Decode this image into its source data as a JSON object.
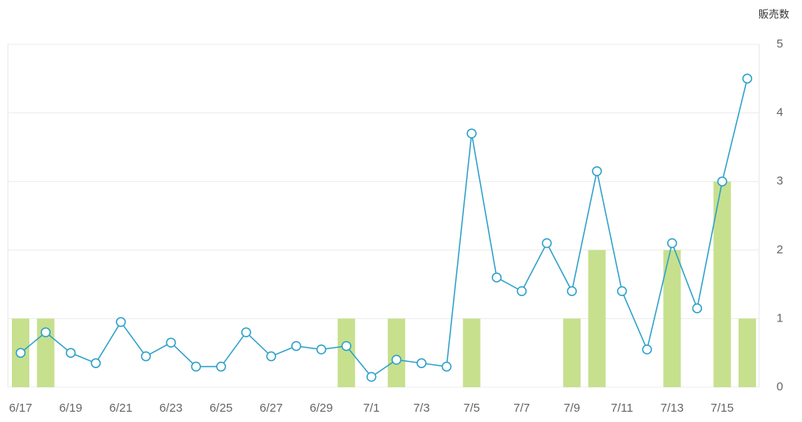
{
  "chart_data": {
    "type": "combo",
    "ylabel": "販売数",
    "categories": [
      "6/17",
      null,
      "6/19",
      null,
      "6/21",
      null,
      "6/23",
      null,
      "6/25",
      null,
      "6/27",
      null,
      "6/29",
      null,
      "7/1",
      null,
      "7/3",
      null,
      "7/5",
      null,
      "7/7",
      null,
      "7/9",
      null,
      "7/11",
      null,
      "7/13",
      null,
      "7/15",
      null
    ],
    "series": [
      {
        "type": "bar",
        "color": "#c6e08e",
        "values": [
          1,
          1,
          0,
          0,
          0,
          0,
          0,
          0,
          0,
          0,
          0,
          0,
          0,
          1,
          0,
          1,
          0,
          0,
          1,
          0,
          0,
          0,
          1,
          2,
          0,
          0,
          2,
          0,
          3,
          1
        ]
      },
      {
        "type": "line",
        "color": "#2a9fc9",
        "values": [
          0.5,
          0.8,
          0.5,
          0.35,
          0.95,
          0.45,
          0.65,
          0.3,
          0.3,
          0.8,
          0.45,
          0.6,
          0.55,
          0.6,
          0.15,
          0.4,
          0.35,
          0.3,
          3.7,
          1.6,
          1.4,
          2.1,
          1.4,
          3.15,
          1.4,
          0.55,
          2.1,
          1.15,
          3.0,
          4.5
        ]
      }
    ],
    "ylim": [
      0,
      5
    ],
    "yticks": [
      0,
      1,
      2,
      3,
      4,
      5
    ],
    "grid": true
  }
}
